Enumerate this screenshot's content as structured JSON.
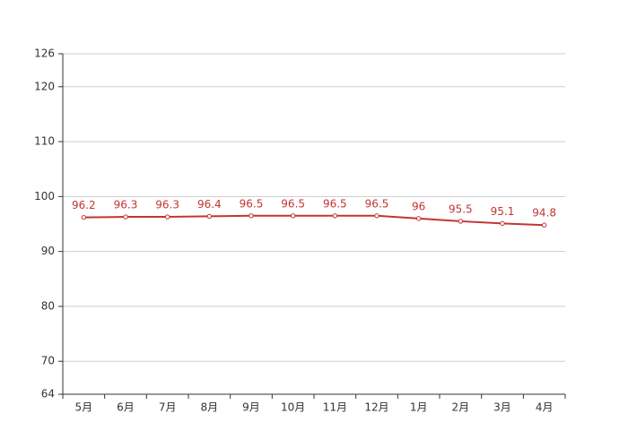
{
  "chart_data": {
    "type": "line",
    "categories": [
      "5月",
      "6月",
      "7月",
      "8月",
      "9月",
      "10月",
      "11月",
      "12月",
      "1月",
      "2月",
      "3月",
      "4月"
    ],
    "values": [
      96.2,
      96.3,
      96.3,
      96.4,
      96.5,
      96.5,
      96.5,
      96.5,
      96,
      95.5,
      95.1,
      94.8
    ],
    "color": "#c23531",
    "ylim": [
      64,
      126
    ],
    "yticks": [
      64,
      70,
      80,
      90,
      100,
      110,
      120,
      126
    ],
    "grid": true
  }
}
